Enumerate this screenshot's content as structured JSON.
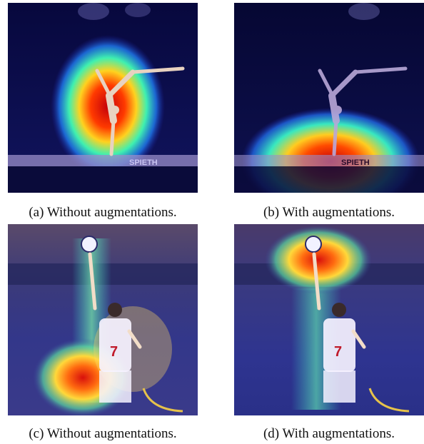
{
  "figure": {
    "panels": [
      {
        "id": "a",
        "caption": "(a) Without augmentations.",
        "scene": "gymnast-on-balance-beam",
        "beam_text": "SPIETH",
        "heatmap_focus": "gymnast-body"
      },
      {
        "id": "b",
        "caption": "(b) With augmentations.",
        "scene": "gymnast-on-balance-beam",
        "beam_text": "SPIETH",
        "heatmap_focus": "beam-below-gymnast"
      },
      {
        "id": "c",
        "caption": "(c) Without augmentations.",
        "scene": "volleyball-player-serving",
        "jersey_text": "7",
        "heatmap_focus": "lower-body-and-arm"
      },
      {
        "id": "d",
        "caption": "(d) With augmentations.",
        "scene": "volleyball-player-serving",
        "jersey_text": "7",
        "heatmap_focus": "ball-and-raised-arm"
      }
    ],
    "colors": {
      "heat_hot": "#c4000b",
      "heat_warm": "#ffd21f",
      "heat_mid": "#22e3c8",
      "heat_cold": "#1c1f9c",
      "heat_dark": "#05063f"
    }
  }
}
